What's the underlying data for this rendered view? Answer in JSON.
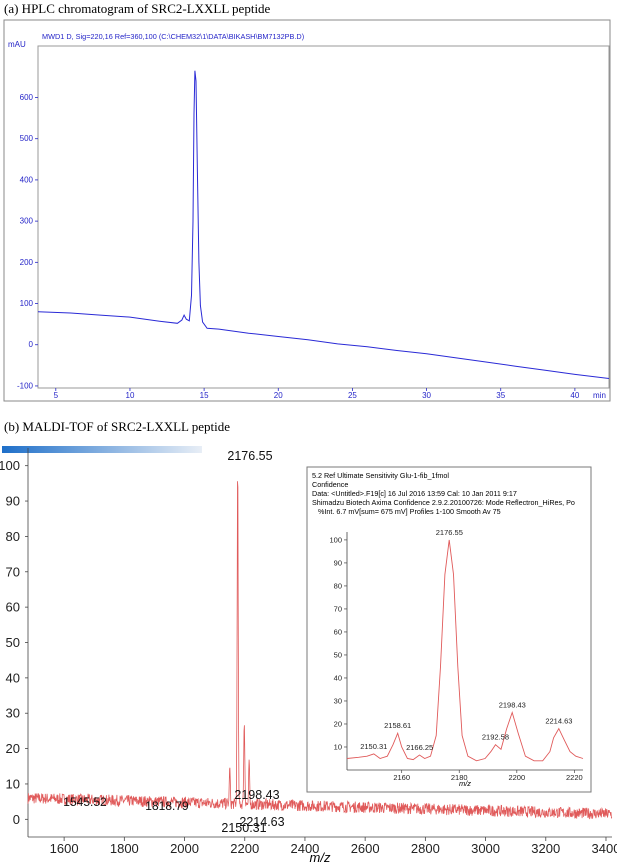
{
  "panels": {
    "hplc": {
      "caption": "(a) HPLC chromatogram of SRC2-LXXLL peptide",
      "header": "MWD1 D, Sig=220,16 Ref=360,100 (C:\\CHEM32\\1\\DATA\\BIKASH\\BM7132PB.D)"
    },
    "maldi": {
      "caption": "(b) MALDI-TOF of SRC2-LXXLL peptide",
      "inset_header": [
        "5.2 Ref Ultimate Sensitivity Glu-1-fib_1fmol",
        "Confidence",
        "Data: <Untitled>.F19[c] 16 Jul 2016 13:59 Cal: 10 Jan 2011 9:17",
        "Shimadzu Biotech Axima Confidence 2.9.2.20100726: Mode Reflectron_HiRes, Po",
        "%Int.      6.7 mV[sum= 675 mV]  Profiles 1-100 Smooth Av 75"
      ]
    }
  },
  "colors": {
    "hplc_trace": "#2a2ad6",
    "hplc_text": "#2424c8",
    "maldi_trace": "#e05a5a",
    "frame": "#7a7a7a",
    "banner_start": "#1e6fc9",
    "banner_end": "#e8eef6"
  },
  "chart_data": [
    {
      "type": "line",
      "title": "(a) HPLC chromatogram of SRC2-LXXLL peptide",
      "ylabel": "mAU",
      "xlabel": "min",
      "xlim": [
        3.8,
        42.3
      ],
      "ylim": [
        -105,
        725
      ],
      "x_ticks": [
        5,
        10,
        15,
        20,
        25,
        30,
        35,
        40
      ],
      "x_tick_labels": [
        "5",
        "10",
        "15",
        "20",
        "25",
        "30",
        "35",
        "40"
      ],
      "x_end_label": "min",
      "y_ticks": [
        -100,
        0,
        100,
        200,
        300,
        400,
        500,
        600
      ],
      "y_tick_labels": [
        "-100",
        "0",
        "100",
        "200",
        "300",
        "400",
        "500",
        "600"
      ],
      "series": [
        {
          "points": [
            [
              3.8,
              80
            ],
            [
              6,
              77
            ],
            [
              8,
              72
            ],
            [
              10,
              67
            ],
            [
              12,
              57
            ],
            [
              13.2,
              52
            ],
            [
              13.5,
              60
            ],
            [
              13.65,
              72
            ],
            [
              13.8,
              62
            ],
            [
              14.0,
              58
            ],
            [
              14.15,
              120
            ],
            [
              14.25,
              300
            ],
            [
              14.32,
              560
            ],
            [
              14.38,
              665
            ],
            [
              14.45,
              640
            ],
            [
              14.55,
              420
            ],
            [
              14.65,
              200
            ],
            [
              14.75,
              95
            ],
            [
              14.9,
              55
            ],
            [
              15.2,
              40
            ],
            [
              16,
              38
            ],
            [
              18,
              28
            ],
            [
              20,
              20
            ],
            [
              22,
              12
            ],
            [
              24,
              2
            ],
            [
              26,
              -5
            ],
            [
              28,
              -14
            ],
            [
              30,
              -22
            ],
            [
              32,
              -32
            ],
            [
              34,
              -42
            ],
            [
              36,
              -52
            ],
            [
              38,
              -62
            ],
            [
              40,
              -72
            ],
            [
              42.3,
              -82
            ]
          ]
        }
      ]
    },
    {
      "type": "line",
      "title": "(b) MALDI-TOF of SRC2-LXXLL peptide",
      "xlabel": "m/z",
      "xlim": [
        1480,
        3420
      ],
      "ylim": [
        -5,
        105
      ],
      "x_ticks": [
        1600,
        1800,
        2000,
        2200,
        2400,
        2600,
        2800,
        3000,
        3200,
        3400
      ],
      "x_tick_labels": [
        "1600",
        "1800",
        "2000",
        "2200",
        "2400",
        "2600",
        "2800",
        "3000",
        "3200",
        "3400"
      ],
      "y_ticks": [
        0,
        10,
        20,
        30,
        40,
        50,
        60,
        70,
        80,
        90,
        100
      ],
      "y_tick_labels": [
        "0",
        "10",
        "20",
        "30",
        "40",
        "50",
        "60",
        "70",
        "80",
        "90",
        "100"
      ],
      "peaks": [
        {
          "x": 2150.31,
          "y": 15,
          "label": "2150.31"
        },
        {
          "x": 2176.55,
          "y": 100,
          "label": "2176.55"
        },
        {
          "x": 2198.43,
          "y": 27,
          "label": "2198.43"
        },
        {
          "x": 2214.63,
          "y": 17,
          "label": "2214.63"
        }
      ],
      "annotations": [
        {
          "x": 1545.52,
          "y": 5,
          "label": "1545.52"
        },
        {
          "x": 1818.79,
          "y": 4,
          "label": "1818.79"
        }
      ],
      "baseline": {
        "start": 6,
        "end": 1.5
      }
    },
    {
      "type": "line",
      "title": "",
      "xlabel": "m/z",
      "xlim": [
        2141,
        2223
      ],
      "ylim": [
        0,
        103
      ],
      "x_ticks": [
        2160,
        2180,
        2200,
        2220
      ],
      "x_tick_labels": [
        "2160",
        "2180",
        "2200",
        "2220"
      ],
      "y_ticks": [
        10,
        20,
        30,
        40,
        50,
        60,
        70,
        80,
        90,
        100
      ],
      "y_tick_labels": [
        "10",
        "20",
        "30",
        "40",
        "50",
        "60",
        "70",
        "80",
        "90",
        "100"
      ],
      "peak_labels": [
        {
          "x": 2150.31,
          "y": 7,
          "label": "2150.31"
        },
        {
          "x": 2158.61,
          "y": 16,
          "label": "2158.61"
        },
        {
          "x": 2166.25,
          "y": 6.5,
          "label": "2166.25"
        },
        {
          "x": 2176.55,
          "y": 100,
          "label": "2176.55"
        },
        {
          "x": 2192.58,
          "y": 11,
          "label": "2192.58"
        },
        {
          "x": 2198.43,
          "y": 25,
          "label": "2198.43"
        },
        {
          "x": 2214.63,
          "y": 18,
          "label": "2214.63"
        }
      ],
      "series": [
        {
          "points": [
            [
              2141,
              5
            ],
            [
              2145,
              5.5
            ],
            [
              2148,
              6
            ],
            [
              2150.3,
              7
            ],
            [
              2152.5,
              5
            ],
            [
              2155,
              6
            ],
            [
              2157,
              11
            ],
            [
              2158.6,
              16
            ],
            [
              2160,
              10
            ],
            [
              2162,
              5
            ],
            [
              2164,
              4.5
            ],
            [
              2166.2,
              6.5
            ],
            [
              2168,
              5
            ],
            [
              2170,
              6
            ],
            [
              2172,
              15
            ],
            [
              2173.5,
              45
            ],
            [
              2175,
              85
            ],
            [
              2176.5,
              100
            ],
            [
              2178,
              85
            ],
            [
              2179.5,
              45
            ],
            [
              2181,
              15
            ],
            [
              2183,
              6
            ],
            [
              2186,
              4
            ],
            [
              2189,
              5
            ],
            [
              2191,
              8
            ],
            [
              2192.6,
              11
            ],
            [
              2194.5,
              9
            ],
            [
              2196.5,
              18
            ],
            [
              2198.4,
              25
            ],
            [
              2200.5,
              16
            ],
            [
              2203,
              6
            ],
            [
              2206,
              4
            ],
            [
              2209,
              4
            ],
            [
              2211.5,
              8
            ],
            [
              2212.8,
              14
            ],
            [
              2214.6,
              18
            ],
            [
              2216.5,
              13
            ],
            [
              2218.5,
              8
            ],
            [
              2220.5,
              6
            ],
            [
              2223,
              5
            ]
          ]
        }
      ]
    }
  ]
}
